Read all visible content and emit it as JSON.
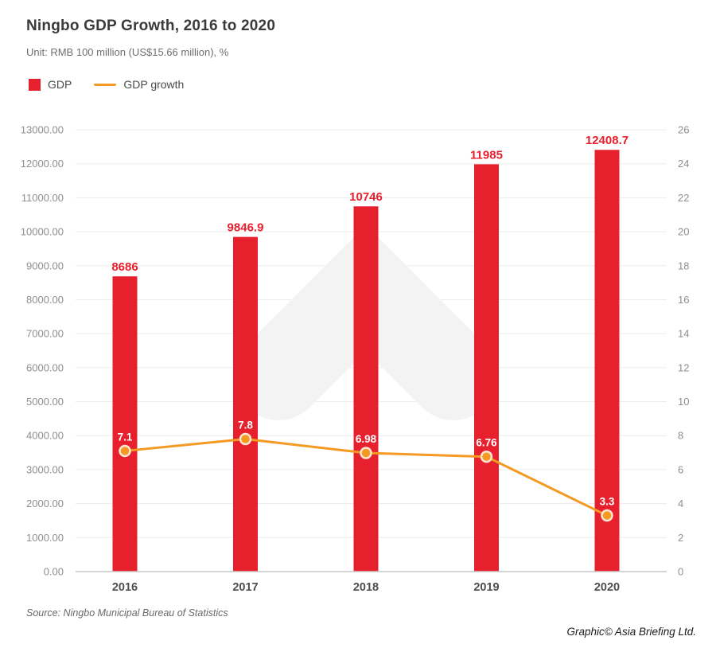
{
  "chart_data": {
    "type": "bar+line combo",
    "title": "Ningbo GDP Growth, 2016 to 2020",
    "subtitle": "Unit: RMB 100 million (US$15.66 million), %",
    "categories": [
      "2016",
      "2017",
      "2018",
      "2019",
      "2020"
    ],
    "series": [
      {
        "name": "GDP",
        "type": "bar",
        "axis": "left",
        "color": "#e7202e",
        "values": [
          8686,
          9846.9,
          10746,
          11985,
          12408.7
        ],
        "labels": [
          "8686",
          "9846.9",
          "10746",
          "11985",
          "12408.7"
        ]
      },
      {
        "name": "GDP growth",
        "type": "line",
        "axis": "right",
        "color": "#f49a23",
        "values": [
          7.1,
          7.8,
          6.98,
          6.76,
          3.3
        ],
        "labels": [
          "7.1",
          "7.8",
          "6.98",
          "6.76",
          "3.3"
        ]
      }
    ],
    "left_axis": {
      "min": 0,
      "max": 13000,
      "step": 1000,
      "tick_format": "two-decimals"
    },
    "right_axis": {
      "min": 0,
      "max": 26,
      "step": 2
    },
    "grid": "horizontal only",
    "legend_position": "top-left"
  },
  "footer": {
    "source": "Source: Ningbo Municipal Bureau of Statistics",
    "credit": "Graphic© Asia Briefing Ltd."
  },
  "colors": {
    "bar": "#e7202e",
    "line": "#f49a23",
    "grid": "#ececec",
    "axis_line": "#c9c9c9",
    "tick_text": "#8f8f8f",
    "category_text": "#4d4d4d",
    "bar_label": "#e7202e",
    "point_label": "#ffffff",
    "marker_ring": "#fce8d2",
    "watermark": "#f3f3f3"
  }
}
